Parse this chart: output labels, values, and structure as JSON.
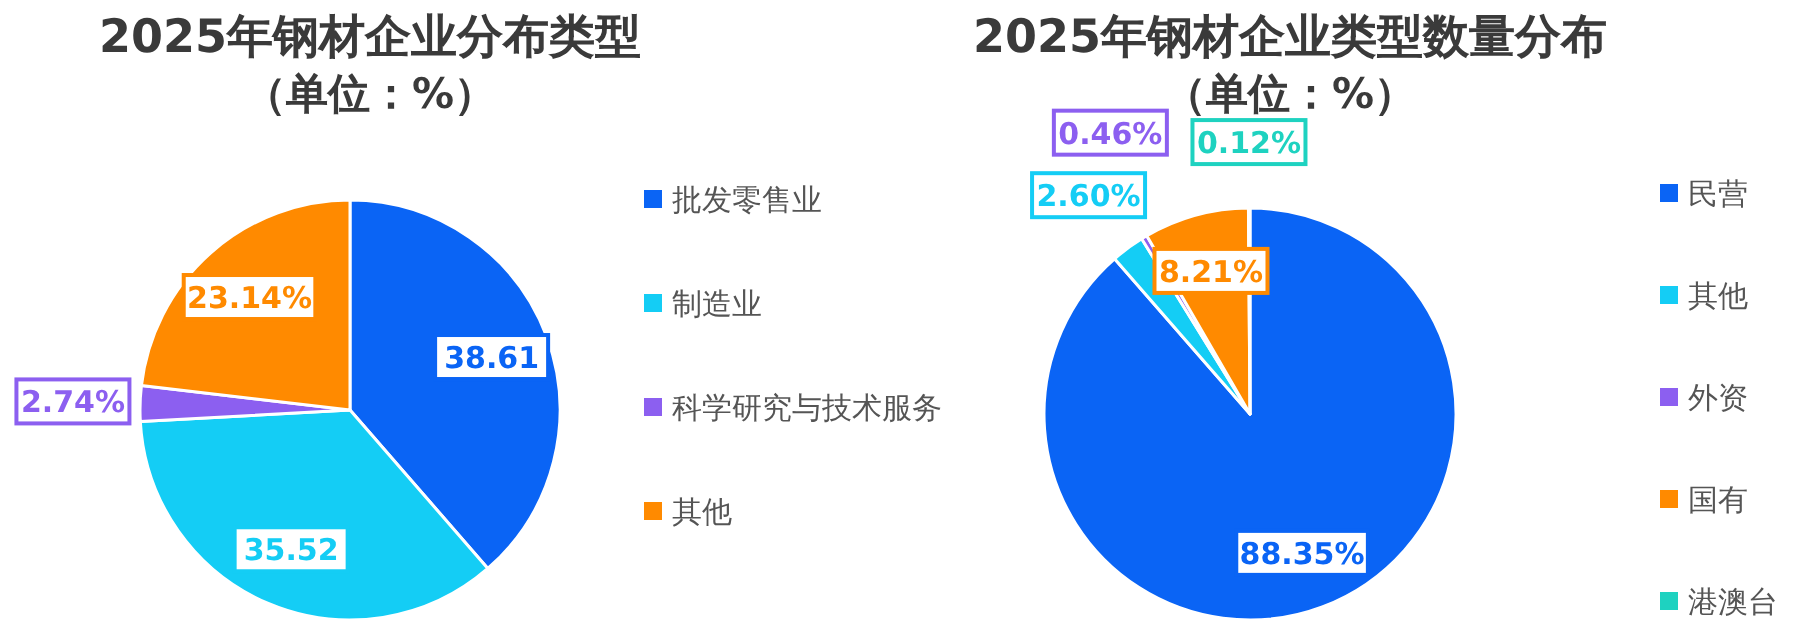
{
  "chart_data": [
    {
      "type": "pie",
      "title": "2025年钢材企业分布类型",
      "subtitle": "（单位：%）",
      "categories": [
        "批发零售业",
        "制造业",
        "科学研究与技术服务",
        "其他"
      ],
      "values": [
        38.61,
        35.52,
        2.74,
        23.14
      ],
      "colors": [
        "#0a64f5",
        "#14cdf5",
        "#8c5ff0",
        "#ff8a00"
      ],
      "value_labels": [
        "38.61",
        "35.52",
        "2.74%",
        "23.14%"
      ],
      "legend": "right"
    },
    {
      "type": "pie",
      "title": "2025年钢材企业类型数量分布",
      "subtitle": "（单位：%）",
      "categories": [
        "民营",
        "其他",
        "外资",
        "国有",
        "港澳台"
      ],
      "values": [
        88.35,
        2.6,
        0.46,
        8.21,
        0.12
      ],
      "colors": [
        "#0a64f5",
        "#14cdf5",
        "#8c5ff0",
        "#ff8a00",
        "#1ed2c0"
      ],
      "value_labels": [
        "88.35%",
        "2.60%",
        "0.46%",
        "8.21%",
        "0.12%"
      ],
      "legend": "right"
    }
  ]
}
